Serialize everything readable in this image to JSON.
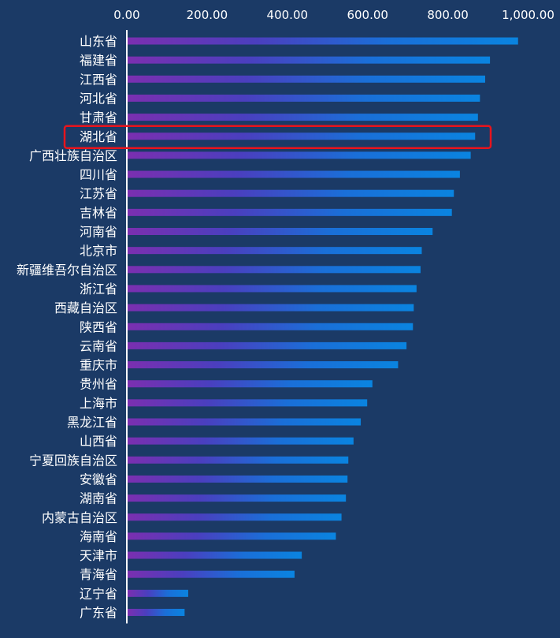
{
  "theme": {
    "background": "#1b3a66",
    "text_color": "#ffffff",
    "bar_gradient": [
      "#7b2fb0",
      "#4a3fbf",
      "#1a6fd8",
      "#0a84e0"
    ],
    "highlight_color": "#e8141c"
  },
  "chart_data": {
    "type": "bar",
    "orientation": "horizontal",
    "title": "",
    "xlabel": "",
    "ylabel": "",
    "xlim": [
      0,
      1000
    ],
    "x_ticks": [
      "0.00",
      "200.00",
      "400.00",
      "600.00",
      "800.00",
      "1,000.00"
    ],
    "x_axis_position": "top",
    "grid": false,
    "legend": "none",
    "highlighted_category": "湖北省",
    "categories": [
      "山东省",
      "福建省",
      "江西省",
      "河北省",
      "甘肃省",
      "湖北省",
      "广西壮族自治区",
      "四川省",
      "江苏省",
      "吉林省",
      "河南省",
      "北京市",
      "新疆维吾尔自治区",
      "浙江省",
      "西藏自治区",
      "陕西省",
      "云南省",
      "重庆市",
      "贵州省",
      "上海市",
      "黑龙江省",
      "山西省",
      "宁夏回族自治区",
      "安徽省",
      "湖南省",
      "内蒙古自治区",
      "海南省",
      "天津市",
      "青海省",
      "辽宁省",
      "广东省"
    ],
    "values": [
      975,
      905,
      893,
      880,
      875,
      868,
      857,
      830,
      815,
      810,
      762,
      735,
      732,
      722,
      715,
      713,
      697,
      676,
      612,
      599,
      583,
      565,
      552,
      550,
      546,
      535,
      521,
      436,
      418,
      153,
      144
    ]
  }
}
